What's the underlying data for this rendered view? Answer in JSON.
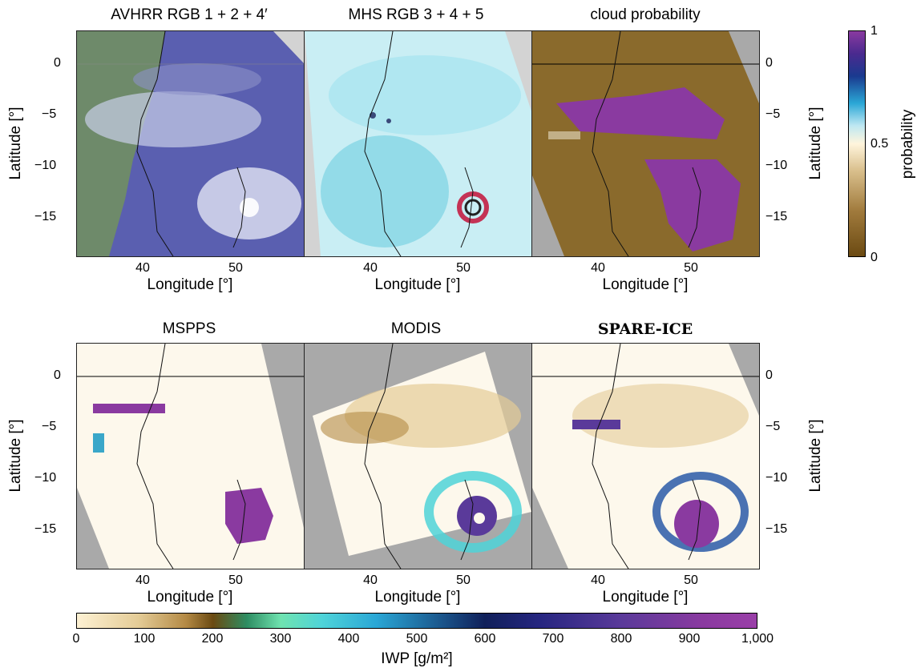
{
  "panels": [
    {
      "id": "p1",
      "title": "AVHRR RGB 1 + 2 + 4′",
      "bold": false
    },
    {
      "id": "p2",
      "title": "MHS RGB 3 + 4 + 5",
      "bold": false
    },
    {
      "id": "p3",
      "title": "cloud probability",
      "bold": false
    },
    {
      "id": "p4",
      "title": "MSPPS",
      "bold": false
    },
    {
      "id": "p5",
      "title": "MODIS",
      "bold": false
    },
    {
      "id": "p6",
      "title": "SPARE-ICE",
      "bold": true
    }
  ],
  "axes": {
    "xlabel": "Longitude [°]",
    "ylabel": "Latitude [°]",
    "x_ticks": [
      "40",
      "50"
    ],
    "y_ticks": [
      "0",
      "−5",
      "−10",
      "−15"
    ],
    "x_range": [
      33.2,
      57.0
    ],
    "y_range": [
      -18.8,
      3.2
    ]
  },
  "probability_colorbar": {
    "label": "probability",
    "ticks": [
      "0",
      "0.5",
      "1"
    ],
    "range": [
      0,
      1
    ]
  },
  "iwp_colorbar": {
    "label": "IWP [g/m²]",
    "ticks": [
      "0",
      "100",
      "200",
      "300",
      "400",
      "500",
      "600",
      "700",
      "800",
      "900",
      "1,000"
    ],
    "range": [
      0,
      1000
    ]
  },
  "colors": {
    "land_gray": "#a9a9a9",
    "background_cream": "#fdf8ec",
    "ocean_cyan": "#c9eef4",
    "avhrr_blue": "#5a5fb0",
    "cloud_brown": "#8a6a2c",
    "high_purple": "#8a3aa0"
  }
}
